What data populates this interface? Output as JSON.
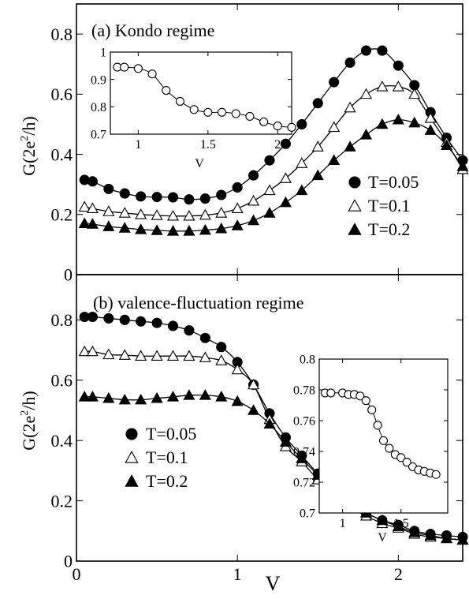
{
  "figure": {
    "xlabel": "V",
    "ylabel_prefix": "G(2e",
    "ylabel_sup": "2",
    "ylabel_suffix": "/h)"
  },
  "chart_data": [
    {
      "type": "line",
      "panel": "a",
      "title": "(a) Kondo regime",
      "xlim": [
        0,
        2.4
      ],
      "ylim": [
        0,
        0.9
      ],
      "xticks": [
        0,
        1,
        2
      ],
      "yticks": [
        0,
        0.2,
        0.4,
        0.6,
        0.8
      ],
      "ytick_labels": [
        "0",
        "0.2",
        "0.4",
        "0.6",
        "0.8"
      ],
      "legend_position": "right",
      "series": [
        {
          "name": "T=0.05",
          "marker": "filled-circle",
          "x": [
            0.05,
            0.1,
            0.2,
            0.3,
            0.4,
            0.5,
            0.6,
            0.7,
            0.8,
            0.9,
            1.0,
            1.1,
            1.2,
            1.3,
            1.4,
            1.5,
            1.6,
            1.7,
            1.8,
            1.9,
            2.0,
            2.1,
            2.2,
            2.3,
            2.4
          ],
          "y": [
            0.315,
            0.31,
            0.285,
            0.27,
            0.26,
            0.258,
            0.257,
            0.25,
            0.253,
            0.265,
            0.29,
            0.33,
            0.38,
            0.435,
            0.5,
            0.57,
            0.64,
            0.705,
            0.745,
            0.745,
            0.695,
            0.63,
            0.54,
            0.455,
            0.38
          ]
        },
        {
          "name": "T=0.1",
          "marker": "open-triangle",
          "x": [
            0.05,
            0.1,
            0.2,
            0.3,
            0.4,
            0.5,
            0.6,
            0.7,
            0.8,
            0.9,
            1.0,
            1.1,
            1.2,
            1.3,
            1.4,
            1.5,
            1.6,
            1.7,
            1.8,
            1.9,
            2.0,
            2.1,
            2.2,
            2.3,
            2.4
          ],
          "y": [
            0.225,
            0.22,
            0.21,
            0.205,
            0.2,
            0.197,
            0.195,
            0.195,
            0.198,
            0.205,
            0.22,
            0.245,
            0.28,
            0.32,
            0.37,
            0.425,
            0.49,
            0.555,
            0.6,
            0.625,
            0.625,
            0.6,
            0.52,
            0.44,
            0.35
          ]
        },
        {
          "name": "T=0.2",
          "marker": "filled-triangle",
          "x": [
            0.05,
            0.1,
            0.2,
            0.3,
            0.4,
            0.5,
            0.6,
            0.7,
            0.8,
            0.9,
            1.0,
            1.1,
            1.2,
            1.3,
            1.4,
            1.5,
            1.6,
            1.7,
            1.8,
            1.9,
            2.0,
            2.1,
            2.2,
            2.3,
            2.4
          ],
          "y": [
            0.17,
            0.168,
            0.16,
            0.155,
            0.15,
            0.147,
            0.145,
            0.145,
            0.148,
            0.153,
            0.163,
            0.18,
            0.205,
            0.24,
            0.28,
            0.33,
            0.38,
            0.425,
            0.465,
            0.5,
            0.515,
            0.505,
            0.48,
            0.43,
            0.36
          ]
        }
      ],
      "inset": {
        "type": "line",
        "xlabel": "V",
        "xlim": [
          0.8,
          2.1
        ],
        "ylim": [
          0.7,
          1.0
        ],
        "xticks": [
          1,
          1.5,
          2
        ],
        "xtick_labels": [
          "1",
          "1.5",
          "2"
        ],
        "yticks": [
          0.7,
          0.8,
          0.9,
          1.0
        ],
        "ytick_labels": [
          "0.7",
          "0.8",
          "0.9",
          "1"
        ],
        "series": [
          {
            "marker": "open-circle",
            "x": [
              0.85,
              0.9,
              1.0,
              1.1,
              1.2,
              1.3,
              1.4,
              1.5,
              1.6,
              1.7,
              1.8,
              1.9,
              2.0,
              2.1
            ],
            "y": [
              0.945,
              0.945,
              0.94,
              0.92,
              0.86,
              0.82,
              0.79,
              0.78,
              0.78,
              0.775,
              0.765,
              0.745,
              0.73,
              0.725
            ]
          }
        ]
      }
    },
    {
      "type": "line",
      "panel": "b",
      "title": "(b)  valence-fluctuation regime",
      "xlim": [
        0,
        2.4
      ],
      "ylim": [
        0,
        0.95
      ],
      "xticks": [
        0,
        1,
        2
      ],
      "xtick_labels": [
        "0",
        "1",
        "2"
      ],
      "yticks": [
        0,
        0.2,
        0.4,
        0.6,
        0.8
      ],
      "ytick_labels": [
        "0",
        "0.2",
        "0.4",
        "0.6",
        "0.8"
      ],
      "legend_position": "left",
      "series": [
        {
          "name": "T=0.05",
          "marker": "filled-circle",
          "x": [
            0.05,
            0.1,
            0.2,
            0.3,
            0.4,
            0.5,
            0.6,
            0.7,
            0.8,
            0.9,
            1.0,
            1.1,
            1.2,
            1.3,
            1.4,
            1.5,
            1.6,
            1.7,
            1.8,
            1.9,
            2.0,
            2.1,
            2.2,
            2.3,
            2.4
          ],
          "y": [
            0.81,
            0.81,
            0.805,
            0.8,
            0.795,
            0.79,
            0.78,
            0.765,
            0.74,
            0.71,
            0.66,
            0.585,
            0.49,
            0.41,
            0.35,
            0.29,
            0.235,
            0.19,
            0.16,
            0.135,
            0.12,
            0.1,
            0.09,
            0.085,
            0.08
          ]
        },
        {
          "name": "T=0.1",
          "marker": "open-triangle",
          "x": [
            0.05,
            0.1,
            0.2,
            0.3,
            0.4,
            0.5,
            0.6,
            0.7,
            0.8,
            0.9,
            1.0,
            1.1,
            1.2,
            1.3,
            1.4,
            1.5,
            1.6,
            1.7,
            1.8,
            1.9,
            2.0,
            2.1,
            2.2,
            2.3,
            2.4
          ],
          "y": [
            0.695,
            0.695,
            0.685,
            0.683,
            0.68,
            0.68,
            0.68,
            0.68,
            0.675,
            0.665,
            0.635,
            0.585,
            0.47,
            0.38,
            0.33,
            0.27,
            0.22,
            0.18,
            0.15,
            0.125,
            0.11,
            0.09,
            0.08,
            0.075,
            0.07
          ]
        },
        {
          "name": "T=0.2",
          "marker": "filled-triangle",
          "x": [
            0.05,
            0.1,
            0.2,
            0.3,
            0.4,
            0.5,
            0.6,
            0.7,
            0.8,
            0.9,
            1.0,
            1.1,
            1.2,
            1.3,
            1.4,
            1.5,
            1.6,
            1.7,
            1.8,
            1.9,
            2.0,
            2.1,
            2.2,
            2.3,
            2.4
          ],
          "y": [
            0.545,
            0.545,
            0.54,
            0.535,
            0.535,
            0.54,
            0.545,
            0.55,
            0.55,
            0.545,
            0.53,
            0.5,
            0.455,
            0.395,
            0.34,
            0.285,
            0.23,
            0.19,
            0.16,
            0.135,
            0.115,
            0.095,
            0.085,
            0.075,
            0.07
          ]
        }
      ],
      "inset": {
        "type": "line",
        "xlabel": "V",
        "xlim": [
          0.8,
          1.9
        ],
        "ylim": [
          0.7,
          0.8
        ],
        "xticks": [
          1,
          1.5
        ],
        "xtick_labels": [
          "1",
          "1.5"
        ],
        "yticks": [
          0.7,
          0.72,
          0.74,
          0.76,
          0.78,
          0.8
        ],
        "ytick_labels": [
          "0.7",
          "0.72",
          "0.74",
          "0.76",
          "0.78",
          "0.8"
        ],
        "series": [
          {
            "marker": "open-circle",
            "x": [
              0.85,
              0.9,
              1.0,
              1.05,
              1.1,
              1.15,
              1.2,
              1.25,
              1.3,
              1.35,
              1.4,
              1.45,
              1.5,
              1.55,
              1.6,
              1.65,
              1.7,
              1.75,
              1.8
            ],
            "y": [
              0.778,
              0.778,
              0.778,
              0.777,
              0.777,
              0.776,
              0.773,
              0.767,
              0.757,
              0.747,
              0.742,
              0.738,
              0.736,
              0.733,
              0.73,
              0.728,
              0.727,
              0.726,
              0.725
            ]
          }
        ]
      }
    }
  ]
}
